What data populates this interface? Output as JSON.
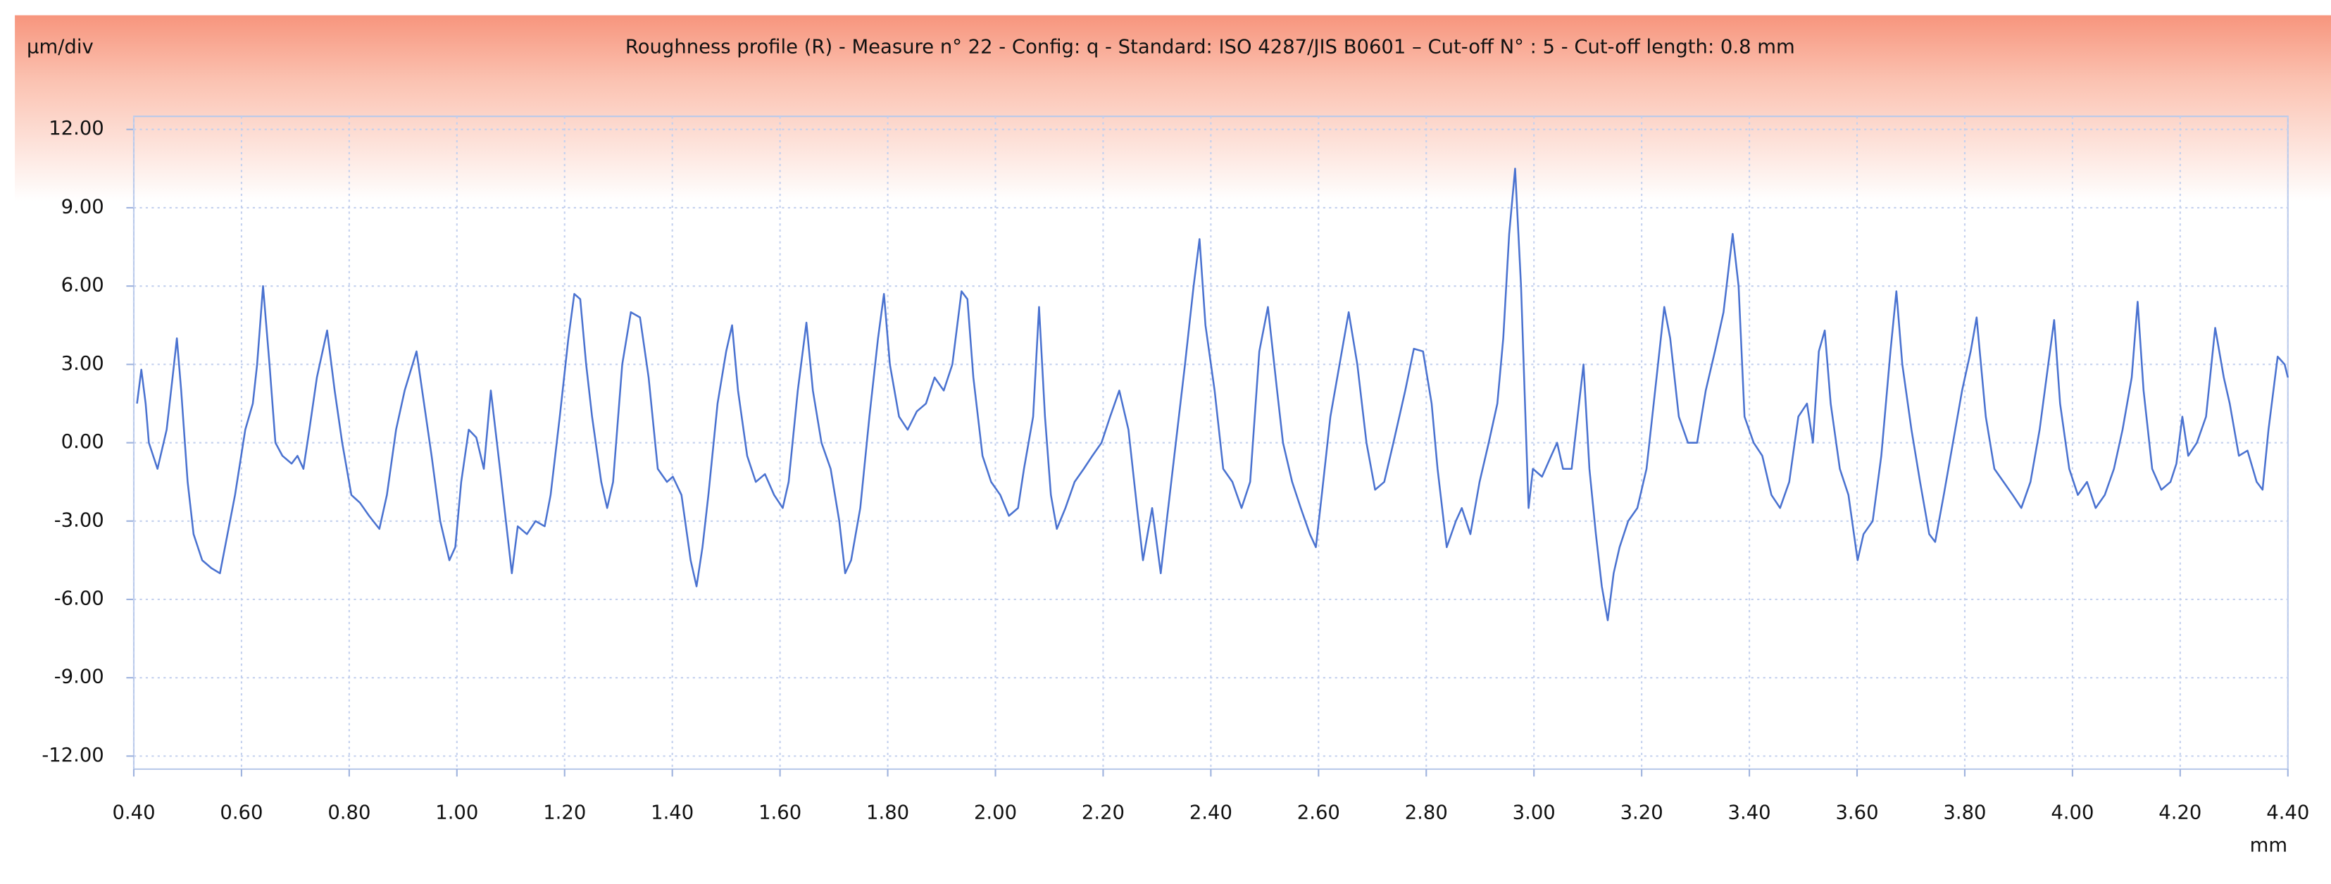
{
  "chart_data": {
    "type": "line",
    "title": "Roughness profile (R) - Measure n° 22 - Config: q - Standard: ISO 4287/JIS B0601 – Cut-off N° : 5 - Cut-off length: 0.8 mm",
    "y_label": "µm/div",
    "x_label": "mm",
    "color": "#4a72d0",
    "grid": true,
    "xlim": [
      0.4,
      4.4
    ],
    "ylim": [
      -12.5,
      12.5
    ],
    "xticks": [
      {
        "value": 0.4,
        "label": "0.40"
      },
      {
        "value": 0.6,
        "label": "0.60"
      },
      {
        "value": 0.8,
        "label": "0.80"
      },
      {
        "value": 1.0,
        "label": "1.00"
      },
      {
        "value": 1.2,
        "label": "1.20"
      },
      {
        "value": 1.4,
        "label": "1.40"
      },
      {
        "value": 1.6,
        "label": "1.60"
      },
      {
        "value": 1.8,
        "label": "1.80"
      },
      {
        "value": 2.0,
        "label": "2.00"
      },
      {
        "value": 2.2,
        "label": "2.20"
      },
      {
        "value": 2.4,
        "label": "2.40"
      },
      {
        "value": 2.6,
        "label": "2.60"
      },
      {
        "value": 2.8,
        "label": "2.80"
      },
      {
        "value": 3.0,
        "label": "3.00"
      },
      {
        "value": 3.2,
        "label": "3.20"
      },
      {
        "value": 3.4,
        "label": "3.40"
      },
      {
        "value": 3.6,
        "label": "3.60"
      },
      {
        "value": 3.8,
        "label": "3.80"
      },
      {
        "value": 4.0,
        "label": "4.00"
      },
      {
        "value": 4.2,
        "label": "4.20"
      },
      {
        "value": 4.4,
        "label": "4.40"
      }
    ],
    "yticks": [
      {
        "value": 12,
        "label": "12.00"
      },
      {
        "value": 9,
        "label": "9.00"
      },
      {
        "value": 6,
        "label": "6.00"
      },
      {
        "value": 3,
        "label": "3.00"
      },
      {
        "value": 0,
        "label": "0.00"
      },
      {
        "value": -3,
        "label": "-3.00"
      },
      {
        "value": -6,
        "label": "-6.00"
      },
      {
        "value": -9,
        "label": "-9.00"
      },
      {
        "value": -12,
        "label": "-12.00"
      }
    ],
    "x": [
      0.406,
      0.414,
      0.422,
      0.428,
      0.444,
      0.461,
      0.472,
      0.48,
      0.488,
      0.5,
      0.511,
      0.527,
      0.544,
      0.56,
      0.574,
      0.588,
      0.607,
      0.621,
      0.629,
      0.64,
      0.652,
      0.663,
      0.676,
      0.693,
      0.704,
      0.715,
      0.726,
      0.74,
      0.759,
      0.773,
      0.787,
      0.804,
      0.82,
      0.837,
      0.856,
      0.87,
      0.887,
      0.903,
      0.925,
      0.939,
      0.953,
      0.969,
      0.986,
      0.997,
      1.008,
      1.022,
      1.036,
      1.05,
      1.063,
      1.08,
      1.091,
      1.102,
      1.113,
      1.13,
      1.146,
      1.163,
      1.174,
      1.191,
      1.207,
      1.218,
      1.229,
      1.24,
      1.251,
      1.268,
      1.279,
      1.29,
      1.307,
      1.323,
      1.34,
      1.356,
      1.373,
      1.39,
      1.401,
      1.417,
      1.434,
      1.445,
      1.456,
      1.467,
      1.484,
      1.5,
      1.511,
      1.522,
      1.539,
      1.555,
      1.572,
      1.589,
      1.605,
      1.616,
      1.633,
      1.649,
      1.661,
      1.677,
      1.694,
      1.71,
      1.721,
      1.732,
      1.749,
      1.766,
      1.782,
      1.793,
      1.804,
      1.821,
      1.837,
      1.854,
      1.871,
      1.887,
      1.904,
      1.92,
      1.937,
      1.948,
      1.959,
      1.976,
      1.992,
      2.009,
      2.025,
      2.042,
      2.053,
      2.07,
      2.081,
      2.092,
      2.103,
      2.114,
      2.13,
      2.147,
      2.164,
      2.18,
      2.197,
      2.213,
      2.23,
      2.247,
      2.263,
      2.274,
      2.291,
      2.307,
      2.318,
      2.335,
      2.352,
      2.368,
      2.379,
      2.39,
      2.407,
      2.423,
      2.44,
      2.457,
      2.473,
      2.49,
      2.506,
      2.523,
      2.534,
      2.551,
      2.567,
      2.584,
      2.595,
      2.606,
      2.622,
      2.639,
      2.656,
      2.672,
      2.689,
      2.705,
      2.722,
      2.739,
      2.761,
      2.777,
      2.794,
      2.81,
      2.821,
      2.838,
      2.855,
      2.866,
      2.882,
      2.899,
      2.916,
      2.932,
      2.943,
      2.954,
      2.965,
      2.976,
      2.985,
      2.99,
      2.998,
      3.015,
      3.032,
      3.043,
      3.054,
      3.07,
      3.081,
      3.092,
      3.103,
      3.115,
      3.126,
      3.137,
      3.148,
      3.159,
      3.175,
      3.192,
      3.209,
      3.225,
      3.242,
      3.253,
      3.269,
      3.286,
      3.303,
      3.319,
      3.336,
      3.352,
      3.369,
      3.38,
      3.391,
      3.408,
      3.424,
      3.441,
      3.457,
      3.474,
      3.491,
      3.507,
      3.518,
      3.529,
      3.54,
      3.551,
      3.568,
      3.584,
      3.601,
      3.612,
      3.629,
      3.645,
      3.662,
      3.673,
      3.684,
      3.701,
      3.717,
      3.734,
      3.745,
      3.761,
      3.778,
      3.795,
      3.811,
      3.822,
      3.839,
      3.855,
      3.872,
      3.889,
      3.905,
      3.922,
      3.939,
      3.955,
      3.966,
      3.977,
      3.994,
      4.01,
      4.027,
      4.043,
      4.06,
      4.077,
      4.093,
      4.11,
      4.121,
      4.132,
      4.148,
      4.165,
      4.182,
      4.193,
      4.204,
      4.215,
      4.231,
      4.248,
      4.265,
      4.281,
      4.292,
      4.309,
      4.325,
      4.342,
      4.353,
      4.364,
      4.381,
      4.394,
      4.4
    ],
    "values": [
      1.5,
      2.8,
      1.5,
      0,
      -1,
      0.5,
      2.5,
      4.0,
      2,
      -1.5,
      -3.5,
      -4.5,
      -4.8,
      -5,
      -3.5,
      -2,
      0.5,
      1.5,
      3,
      6.0,
      3,
      0,
      -0.5,
      -0.8,
      -0.5,
      -1,
      0.5,
      2.5,
      4.3,
      2,
      0,
      -2,
      -2.3,
      -2.8,
      -3.3,
      -2,
      0.5,
      2,
      3.5,
      1.5,
      -0.5,
      -3,
      -4.5,
      -4,
      -1.5,
      0.5,
      0.2,
      -1,
      2,
      -1,
      -3,
      -5,
      -3.2,
      -3.5,
      -3,
      -3.2,
      -2,
      1,
      4,
      5.7,
      5.5,
      3,
      1,
      -1.5,
      -2.5,
      -1.5,
      3,
      5,
      4.8,
      2.5,
      -1,
      -1.5,
      -1.3,
      -2,
      -4.5,
      -5.5,
      -4,
      -2,
      1.5,
      3.5,
      4.5,
      2,
      -0.5,
      -1.5,
      -1.2,
      -2,
      -2.5,
      -1.5,
      2,
      4.6,
      2,
      0,
      -1,
      -3,
      -5,
      -4.5,
      -2.5,
      1,
      4,
      5.7,
      3,
      1,
      0.5,
      1.2,
      1.5,
      2.5,
      2,
      3,
      5.8,
      5.5,
      2.5,
      -0.5,
      -1.5,
      -2,
      -2.8,
      -2.5,
      -1,
      1,
      5.2,
      1,
      -2,
      -3.3,
      -2.5,
      -1.5,
      -1,
      -0.5,
      0,
      1,
      2,
      0.5,
      -2.5,
      -4.5,
      -2.5,
      -5,
      -3,
      0,
      3,
      6,
      7.8,
      4.5,
      2,
      -1,
      -1.5,
      -2.5,
      -1.5,
      3.5,
      5.2,
      2,
      0,
      -1.5,
      -2.5,
      -3.5,
      -4,
      -2,
      1,
      3,
      5,
      3,
      0,
      -1.8,
      -1.5,
      0,
      2,
      3.6,
      3.5,
      1.5,
      -1,
      -4,
      -3,
      -2.5,
      -3.5,
      -1.5,
      0,
      1.5,
      4,
      8,
      10.5,
      6,
      0.5,
      -2.5,
      -1,
      -1.3,
      -0.5,
      0,
      -1,
      -1,
      1,
      3,
      -1,
      -3.5,
      -5.5,
      -6.8,
      -5,
      -4,
      -3,
      -2.5,
      -1,
      2,
      5.2,
      4,
      1,
      0,
      0,
      2,
      3.5,
      5,
      8,
      6,
      1,
      0,
      -0.5,
      -2,
      -2.5,
      -1.5,
      1,
      1.5,
      0,
      3.5,
      4.3,
      1.5,
      -1,
      -2,
      -4.5,
      -3.5,
      -3,
      -0.5,
      3.5,
      5.8,
      3,
      0.5,
      -1.5,
      -3.5,
      -3.8,
      -2,
      0,
      2,
      3.5,
      4.8,
      1,
      -1,
      -1.5,
      -2,
      -2.5,
      -1.5,
      0.5,
      3,
      4.7,
      1.5,
      -1,
      -2,
      -1.5,
      -2.5,
      -2,
      -1,
      0.5,
      2.5,
      5.4,
      2,
      -1,
      -1.8,
      -1.5,
      -0.8,
      1,
      -0.5,
      0,
      1,
      4.4,
      2.5,
      1.5,
      -0.5,
      -0.3,
      -1.5,
      -1.8,
      0.5,
      3.3,
      3,
      2.5
    ]
  }
}
